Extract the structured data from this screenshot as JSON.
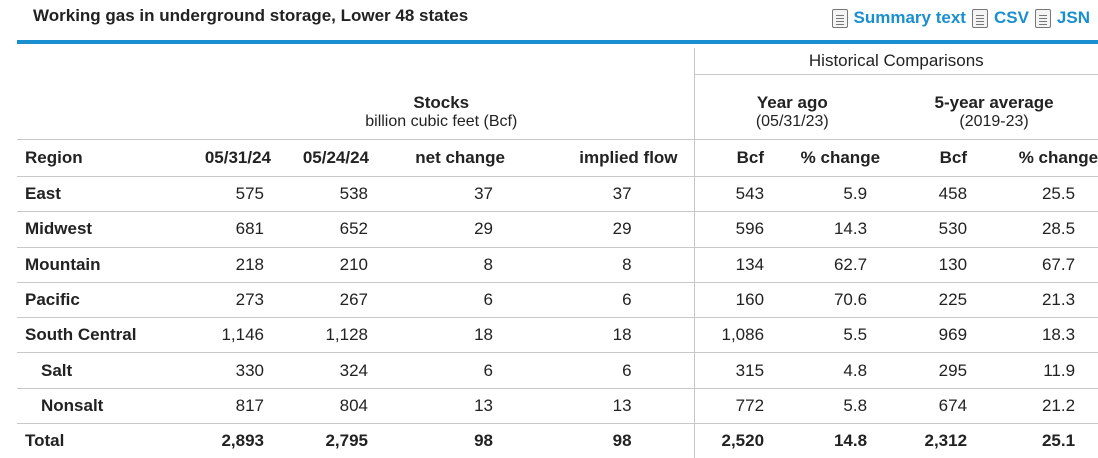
{
  "header": {
    "title": "Working gas in underground storage, Lower 48 states",
    "links": {
      "summary": "Summary text",
      "csv": "CSV",
      "json": "JSN"
    }
  },
  "table": {
    "historical_title": "Historical Comparisons",
    "stocks_title": "Stocks",
    "stocks_subtitle": "billion cubic feet (Bcf)",
    "year_ago_title": "Year ago",
    "year_ago_subtitle": "(05/31/23)",
    "five_year_title": "5-year average",
    "five_year_subtitle": "(2019-23)",
    "columns": [
      "Region",
      "05/31/24",
      "05/24/24",
      "net change",
      "implied flow",
      "Bcf",
      "% change",
      "Bcf",
      "% change"
    ],
    "rows": [
      [
        "East",
        "575",
        "538",
        "37",
        "37",
        "543",
        "5.9",
        "458",
        "25.5"
      ],
      [
        "Midwest",
        "681",
        "652",
        "29",
        "29",
        "596",
        "14.3",
        "530",
        "28.5"
      ],
      [
        "Mountain",
        "218",
        "210",
        "8",
        "8",
        "134",
        "62.7",
        "130",
        "67.7"
      ],
      [
        "Pacific",
        "273",
        "267",
        "6",
        "6",
        "160",
        "70.6",
        "225",
        "21.3"
      ],
      [
        "South Central",
        "1,146",
        "1,128",
        "18",
        "18",
        "1,086",
        "5.5",
        "969",
        "18.3"
      ],
      [
        "Salt",
        "330",
        "324",
        "6",
        "6",
        "315",
        "4.8",
        "295",
        "11.9"
      ],
      [
        "Nonsalt",
        "817",
        "804",
        "13",
        "13",
        "772",
        "5.8",
        "674",
        "21.2"
      ],
      [
        "Total",
        "2,893",
        "2,795",
        "98",
        "98",
        "2,520",
        "14.8",
        "2,312",
        "25.1"
      ]
    ]
  }
}
